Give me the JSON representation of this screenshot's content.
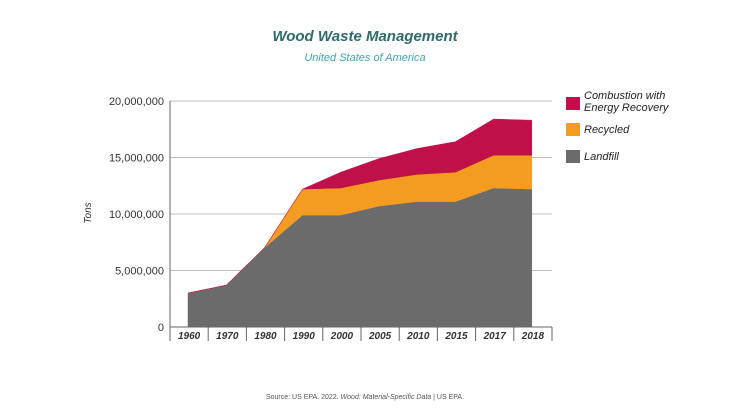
{
  "chart_data": {
    "type": "area",
    "stacked": true,
    "title": "Wood Waste Management",
    "subtitle": "United States of America",
    "ylabel": "Tons",
    "xlabel": "",
    "categories": [
      "1960",
      "1970",
      "1980",
      "1990",
      "2000",
      "2005",
      "2010",
      "2015",
      "2017",
      "2018"
    ],
    "ylim": [
      0,
      20000000
    ],
    "yticks": [
      0,
      5000000,
      10000000,
      15000000,
      20000000
    ],
    "ytick_labels": [
      "0",
      "5,000,000",
      "10,000,000",
      "15,000,000",
      "20,000,000"
    ],
    "grid": true,
    "legend_position": "right",
    "series": [
      {
        "name": "Landfill",
        "color": "#6b6b6b",
        "values": [
          3000000,
          3700000,
          7000000,
          9900000,
          9900000,
          10700000,
          11100000,
          11100000,
          12300000,
          12200000
        ]
      },
      {
        "name": "Recycled",
        "color": "#f39c1f",
        "values": [
          0,
          0,
          0,
          2300000,
          2400000,
          2300000,
          2400000,
          2600000,
          2900000,
          3000000
        ]
      },
      {
        "name": "Combustion with Energy Recovery",
        "color": "#c0104a",
        "values": [
          0,
          0,
          0,
          0,
          1400000,
          1900000,
          2300000,
          2700000,
          3200000,
          3100000
        ]
      }
    ],
    "legend_lines": {
      "Combustion with Energy Recovery": [
        "Combustion with",
        "Energy Recovery"
      ],
      "Recycled": [
        "Recycled"
      ],
      "Landfill": [
        "Landfill"
      ]
    }
  },
  "colors": {
    "title": "#2e6b6b",
    "subtitle": "#3aa8b0",
    "grid": "#bfbfbf",
    "axis": "#666666"
  },
  "source": {
    "prefix": "Source:  US EPA.  2022.  ",
    "italic": "Wood: Material-Specific  Data",
    "suffix": "  | US EPA."
  }
}
